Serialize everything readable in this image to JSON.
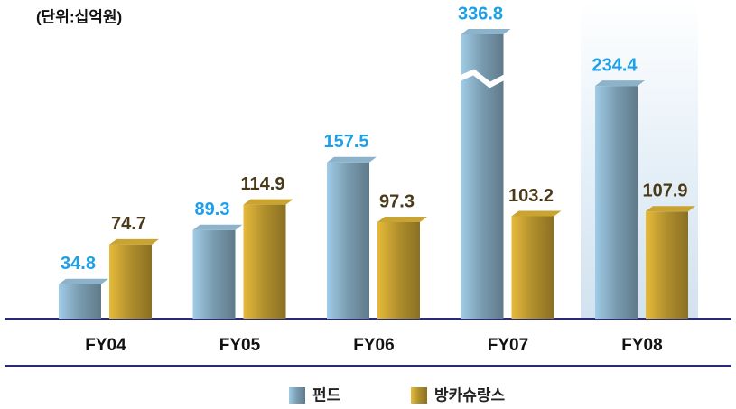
{
  "chart_data": {
    "type": "bar",
    "subtitle": "(단위:십억원)",
    "categories": [
      "FY04",
      "FY05",
      "FY06",
      "FY07",
      "FY08"
    ],
    "series": [
      {
        "name": "펀드",
        "color": "#7fa3b8",
        "values": [
          34.8,
          89.3,
          157.5,
          336.8,
          234.4
        ]
      },
      {
        "name": "방카슈랑스",
        "color": "#b8952e",
        "values": [
          74.7,
          114.9,
          97.3,
          103.2,
          107.9
        ]
      }
    ],
    "label_colors": [
      "#1ea0e8",
      "#4a3a1a"
    ],
    "legend": "bottom"
  }
}
